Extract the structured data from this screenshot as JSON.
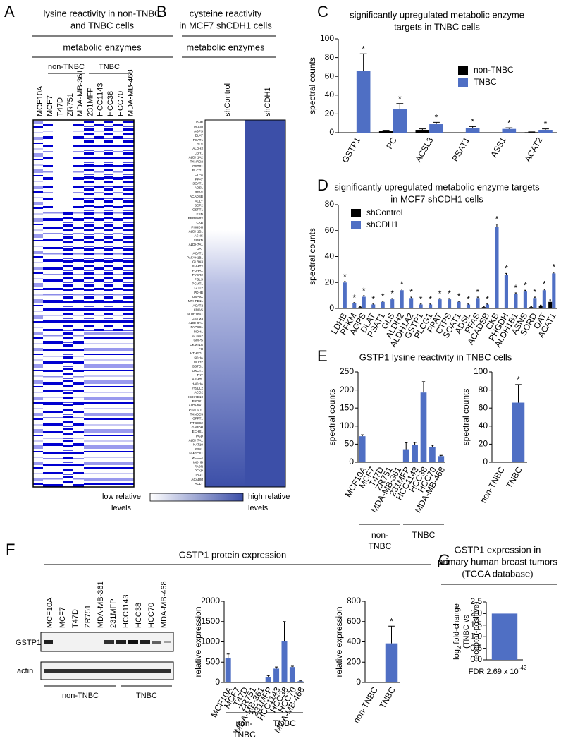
{
  "panel_letters": [
    "A",
    "B",
    "C",
    "D",
    "E",
    "F",
    "G"
  ],
  "panel_a": {
    "title": [
      "lysine reactivity in non-TNBC",
      "and TNBC cells"
    ],
    "subtitle": "metabolic enzymes",
    "groups": [
      "non-TNBC",
      "TNBC"
    ],
    "columns": [
      "MCF10A",
      "MCF7",
      "T47D",
      "ZR751",
      "MDA-MB-361",
      "231MFP",
      "HCC1143",
      "HCC38",
      "HCC70",
      "MDA-MB-468"
    ]
  },
  "panel_b": {
    "title": [
      "cysteine reactivity",
      "in MCF7 shCDH1 cells"
    ],
    "subtitle": "metabolic enzymes",
    "columns": [
      "shControl",
      "shCDH1"
    ],
    "genes": [
      "LDHB",
      "PFKM",
      "AGPS",
      "DLAT",
      "PSAT1",
      "GLS",
      "ALDH2",
      "CBR1",
      "ALDH1A2",
      "TXNRD2",
      "GSTP1",
      "PLCG1",
      "CTPS",
      "PPAT",
      "SOAT1",
      "ADSL",
      "PFAS",
      "ACADSB",
      "ACLY",
      "SCP2",
      "GSPT1",
      "ESD",
      "PRPSAP2",
      "CKB",
      "PHGDH",
      "ALDH1B1",
      "ASNS",
      "SORD",
      "ALDH7A1",
      "OAT",
      "ACAT1",
      "PAFAH1B1",
      "GLRX3",
      "SHMT2",
      "PDHA1",
      "PYCR2",
      "PGLS",
      "PCMT1",
      "GOT2",
      "PDHB",
      "USP9X",
      "MTHFD1L",
      "ACAT2",
      "CMAS",
      "ALDH18A1",
      "GSTM3",
      "ALDH9A1",
      "PAPSS1",
      "MDH1",
      "ACAA2",
      "GMPS",
      "CKMT1A",
      "FH",
      "MTHFD1",
      "SDHA",
      "MDH2",
      "GSTO1",
      "OXCT1",
      "TKT",
      "ASMTL",
      "HADHA",
      "HSDL2",
      "ACO2",
      "HSD17B10",
      "PRDX1",
      "ALDH5A1",
      "PTPLAD1",
      "TXNDC5",
      "GFPT1",
      "PTGES2",
      "GAPDH",
      "ECHS1",
      "PGD",
      "ALDH7A1",
      "NAT10",
      "RPN1",
      "HMGCS1",
      "MCCC2",
      "HADHB",
      "FASN",
      "PFKP",
      "IDH1",
      "ACADM",
      "ACLY"
    ],
    "legend_low": [
      "low relative",
      "levels"
    ],
    "legend_high": [
      "high relative",
      "levels"
    ]
  },
  "panel_f": {
    "title": "GSTP1 protein expression",
    "lanes": [
      "MCF10A",
      "MCF7",
      "T47D",
      "ZR751",
      "MDA-MB-361",
      "231MFP",
      "HCC1143",
      "HCC38",
      "HCC70",
      "MDA-MB-468"
    ],
    "blots": [
      "GSTP1",
      "actin"
    ],
    "groups": [
      "non-TNBC",
      "TNBC"
    ]
  },
  "chart_data": [
    {
      "type": "bar",
      "title": [
        "significantly upregulated metabolic enzyme",
        "targets in TNBC cells"
      ],
      "ylabel": "spectral counts",
      "categories": [
        "GSTP1",
        "PC",
        "ACSL3",
        "PSAT1",
        "ASS1",
        "ACAT2"
      ],
      "series": [
        {
          "name": "non-TNBC",
          "color": "#000000",
          "values": [
            0,
            2,
            3,
            0,
            0,
            0.5
          ],
          "errors": [
            0,
            0.5,
            1,
            0,
            0,
            0.3
          ]
        },
        {
          "name": "TNBC",
          "color": "#4f6fc4",
          "values": [
            66,
            25,
            9,
            5,
            4,
            3
          ],
          "errors": [
            18,
            6,
            2,
            1.5,
            1.2,
            1
          ]
        }
      ],
      "significance": [
        "*",
        "*",
        "*",
        "*",
        "*",
        "*"
      ],
      "ylim": [
        0,
        100
      ],
      "yticks": [
        0,
        20,
        40,
        60,
        80,
        100
      ],
      "legend": "upper right"
    },
    {
      "type": "bar",
      "title": [
        "significantly upregulated metabolic enzyme targets",
        "in MCF7 shCDH1 cells"
      ],
      "ylabel": "spectral counts",
      "categories": [
        "LDHB",
        "PFKM",
        "AGPS",
        "DLAT",
        "PSAT1",
        "GLS",
        "ALDH2",
        "ALDH1A2",
        "GSTP1",
        "PLCG1",
        "PPAT",
        "CTPS",
        "SOAT1",
        "ADSL",
        "PFAS",
        "ACADSB",
        "CKB",
        "PHGDH",
        "ALDH1B1",
        "ASNS",
        "SORD",
        "OAT",
        "ACAT1"
      ],
      "series": [
        {
          "name": "shControl",
          "color": "#000000",
          "values": [
            0,
            0,
            1,
            0,
            0,
            0,
            0,
            0,
            0,
            0,
            0,
            0,
            0,
            0,
            0,
            1,
            0,
            0,
            0,
            0,
            1,
            2,
            5
          ],
          "errors": [
            0,
            0,
            0.3,
            0,
            0,
            0,
            0,
            0,
            0,
            0,
            0,
            0,
            0,
            0,
            0,
            0.3,
            0,
            0,
            0,
            0,
            0.3,
            0.5,
            1.5
          ]
        },
        {
          "name": "shCDH1",
          "color": "#4f6fc4",
          "values": [
            20,
            4,
            9,
            3,
            5,
            7,
            14,
            8,
            3,
            3,
            7,
            7,
            5,
            3,
            8,
            3,
            63,
            26,
            11,
            13,
            8,
            14,
            27
          ],
          "errors": [
            0.7,
            0.5,
            0.8,
            0.4,
            0.5,
            0.6,
            1,
            0.7,
            0.4,
            0.4,
            0.6,
            0.6,
            0.5,
            0.4,
            0.7,
            0.4,
            2,
            1,
            1,
            1,
            0.7,
            1,
            1
          ]
        }
      ],
      "significance": [
        "*",
        "*",
        "*",
        "*",
        "*",
        "*",
        "*",
        "*",
        "*",
        "*",
        "*",
        "*",
        "*",
        "*",
        "*",
        "*",
        "*",
        "*",
        "*",
        "*",
        "*",
        "*",
        "*"
      ],
      "ylim": [
        0,
        80
      ],
      "yticks": [
        0,
        20,
        40,
        60,
        80
      ],
      "legend": "upper left"
    },
    {
      "type": "bar",
      "title": [
        "GSTP1 lysine reactivity in TNBC cells"
      ],
      "ylabel": "spectral counts",
      "categories": [
        "MCF10A",
        "MCF7",
        "T47D",
        "ZR751",
        "MDA-MB-361",
        "231MFP",
        "HCC1143",
        "HCC38",
        "HCC70",
        "MDA-MB-468"
      ],
      "series": [
        {
          "color": "#4f6fc4",
          "values": [
            72,
            0,
            0,
            0,
            0,
            36,
            47,
            193,
            42,
            17
          ],
          "errors": [
            4,
            0,
            0,
            0,
            0,
            18,
            8,
            30,
            5,
            2
          ]
        }
      ],
      "group_labels": [
        [
          "non-",
          "TNBC"
        ],
        [
          "TNBC"
        ]
      ],
      "ylim": [
        0,
        250
      ],
      "yticks": [
        0,
        50,
        100,
        150,
        200,
        250
      ]
    },
    {
      "type": "bar",
      "ylabel": "spectral counts",
      "categories": [
        "non-TNBC",
        "TNBC"
      ],
      "series": [
        {
          "color": "#4f6fc4",
          "values": [
            0,
            66
          ],
          "errors": [
            0,
            20
          ]
        }
      ],
      "significance": [
        null,
        "*"
      ],
      "ylim": [
        0,
        100
      ],
      "yticks": [
        0,
        20,
        40,
        60,
        80,
        100
      ]
    },
    {
      "type": "bar",
      "ylabel": "relative expression",
      "categories": [
        "MCF10A",
        "MCF7",
        "T47D",
        "ZR751",
        "MDA-MB-361",
        "231MFP",
        "HCC1143",
        "HCC38",
        "HCC70",
        "MDA-MB-468"
      ],
      "series": [
        {
          "color": "#4f6fc4",
          "values": [
            600,
            0,
            0,
            0,
            0,
            130,
            340,
            1020,
            380,
            30
          ],
          "errors": [
            100,
            0,
            0,
            0,
            0,
            40,
            40,
            480,
            20,
            10
          ]
        }
      ],
      "group_labels": [
        [
          "non-",
          "TNBC"
        ],
        [
          "TNBC"
        ]
      ],
      "ylim": [
        0,
        2000
      ],
      "yticks": [
        0,
        500,
        1000,
        1500,
        2000
      ]
    },
    {
      "type": "bar",
      "ylabel": "relative expression",
      "categories": [
        "non-TNBC",
        "TNBC"
      ],
      "series": [
        {
          "color": "#4f6fc4",
          "values": [
            0,
            385
          ],
          "errors": [
            0,
            170
          ]
        }
      ],
      "significance": [
        null,
        "*"
      ],
      "ylim": [
        0,
        800
      ],
      "yticks": [
        0,
        200,
        400,
        600,
        800
      ]
    },
    {
      "type": "bar",
      "title": [
        "GSTP1 expression in",
        "primary human breast tumors",
        "(TCGA database)"
      ],
      "ylabel_parts": [
        "log",
        "2",
        " fold-change",
        "(TNBC vs",
        "receptor-positive)"
      ],
      "categories": [
        null
      ],
      "series": [
        {
          "color": "#4f6fc4",
          "values": [
            2
          ]
        }
      ],
      "footnote": [
        "FDR 2.69 x 10",
        "-42"
      ],
      "ylim": [
        0,
        2.5
      ],
      "yticks": [
        {
          "value": 0,
          "label": "0.0"
        },
        0.5,
        {
          "value": 1,
          "label": "1.0"
        },
        1.5,
        {
          "value": 2,
          "label": "2.0"
        },
        2.5
      ]
    }
  ]
}
